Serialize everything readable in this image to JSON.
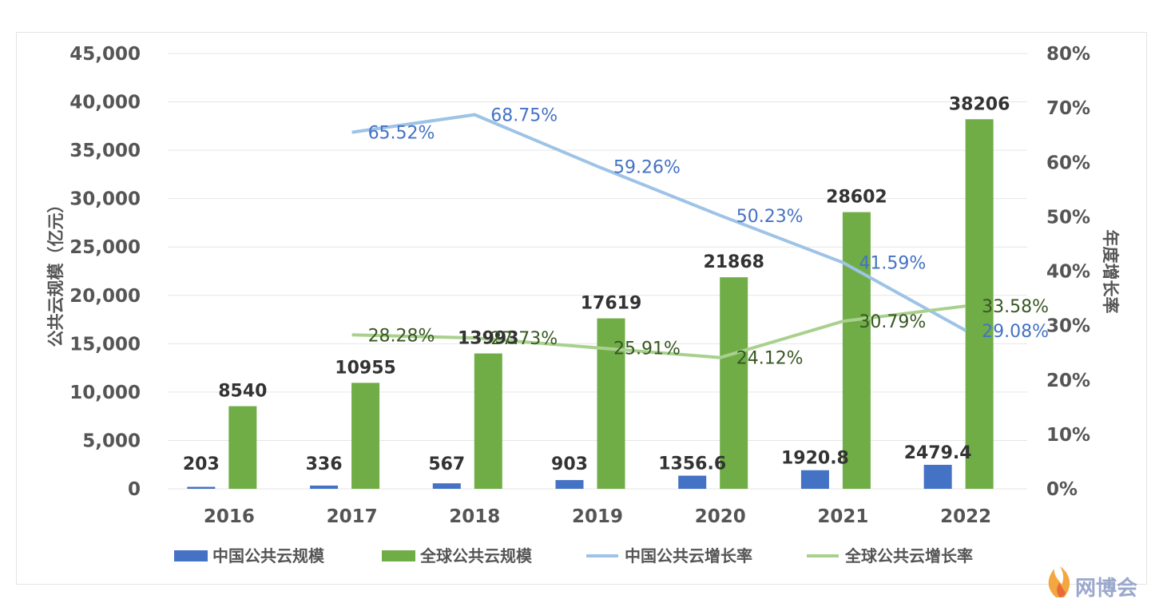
{
  "colors": {
    "china_bar": "#4472c4",
    "global_bar": "#70ad47",
    "china_line": "#9dc3e6",
    "global_line": "#a9d18e",
    "china_line_label": "#4472c4",
    "global_line_label": "#385723",
    "gridline": "#e6e6e6"
  },
  "chart_data": {
    "type": "bar",
    "categories": [
      "2016",
      "2017",
      "2018",
      "2019",
      "2020",
      "2021",
      "2022"
    ],
    "ylabel": "公共云规模（亿元）",
    "y2label": "年度增长率",
    "ylim": [
      0,
      45000
    ],
    "y2lim": [
      0,
      0.8
    ],
    "y_ticks": [
      "0",
      "5,000",
      "10,000",
      "15,000",
      "20,000",
      "25,000",
      "30,000",
      "35,000",
      "40,000",
      "45,000"
    ],
    "y2_ticks": [
      "0%",
      "10%",
      "20%",
      "30%",
      "40%",
      "50%",
      "60%",
      "70%",
      "80%"
    ],
    "grid": true,
    "legend": "bottom",
    "series": [
      {
        "name": "中国公共云规模",
        "type": "bar",
        "axis": "left",
        "values": [
          203,
          336,
          567,
          903,
          1356.6,
          1920.8,
          2479.4
        ],
        "labels": [
          "203",
          "336",
          "567",
          "903",
          "1356.6",
          "1920.8",
          "2479.4"
        ]
      },
      {
        "name": "全球公共云规模",
        "type": "bar",
        "axis": "left",
        "values": [
          8540,
          10955,
          13993,
          17619,
          21868,
          28602,
          38206
        ],
        "labels": [
          "8540",
          "10955",
          "13993",
          "17619",
          "21868",
          "28602",
          "38206"
        ]
      },
      {
        "name": "中国公共云增长率",
        "type": "line",
        "axis": "right",
        "values": [
          null,
          0.6552,
          0.6875,
          0.5926,
          0.5023,
          0.4159,
          0.2908
        ],
        "labels": [
          "",
          "65.52%",
          "68.75%",
          "59.26%",
          "50.23%",
          "41.59%",
          "29.08%"
        ]
      },
      {
        "name": "全球公共云增长率",
        "type": "line",
        "axis": "right",
        "values": [
          null,
          0.2828,
          0.2773,
          0.2591,
          0.2412,
          0.3079,
          0.3358
        ],
        "labels": [
          "",
          "28.28%",
          "27.73%",
          "25.91%",
          "24.12%",
          "30.79%",
          "33.58%"
        ]
      }
    ]
  },
  "watermark": {
    "text": "网博会",
    "icon": "flame-logo-icon"
  }
}
